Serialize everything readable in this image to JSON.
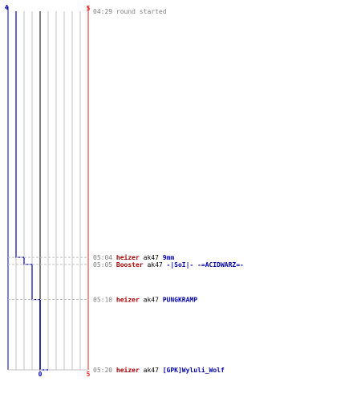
{
  "chart_data": {
    "type": "line",
    "title": "",
    "xlabel": "",
    "ylabel": "",
    "ylim": [
      0,
      5
    ],
    "grid": true,
    "axis_labels": {
      "blue_top": "4",
      "red_top": "5",
      "bottom_mid": "0",
      "red_bottom": "5"
    },
    "series": [
      {
        "color": "#0000aa",
        "steps": [
          {
            "time": "04:29",
            "score": 4
          },
          {
            "time": "05:04",
            "score": 3
          },
          {
            "time": "05:05",
            "score": 2
          },
          {
            "time": "05:10",
            "score": 1
          },
          {
            "time": "05:20",
            "score": 0
          }
        ]
      }
    ],
    "events": [
      {
        "time": "04:29",
        "text": "round started",
        "type": "start"
      },
      {
        "time": "05:04",
        "killer": "heizer",
        "weapon": "ak47",
        "victim": "9mm",
        "killer_color": "#aa0000",
        "victim_color": "#0000aa"
      },
      {
        "time": "05:05",
        "killer": "Booster",
        "weapon": "ak47",
        "victim": "-|SoI|- -=ACIDWARZ=-",
        "killer_color": "#aa0000",
        "victim_color": "#0000aa"
      },
      {
        "time": "05:10",
        "killer": "heizer",
        "weapon": "ak47",
        "victim": "PUNGKRAMP",
        "killer_color": "#aa0000",
        "victim_color": "#0000aa"
      },
      {
        "time": "05:20",
        "killer": "heizer",
        "weapon": "ak47",
        "victim": "[GPK]Wyluli_Wolf",
        "killer_color": "#aa0000",
        "victim_color": "#0000aa"
      }
    ],
    "colors": {
      "blue": "#0000aa",
      "red": "#ee2222",
      "grid": "#c0c0c0",
      "center": "#808080",
      "time_text": "#808080",
      "weapon_text": "#000000"
    }
  }
}
